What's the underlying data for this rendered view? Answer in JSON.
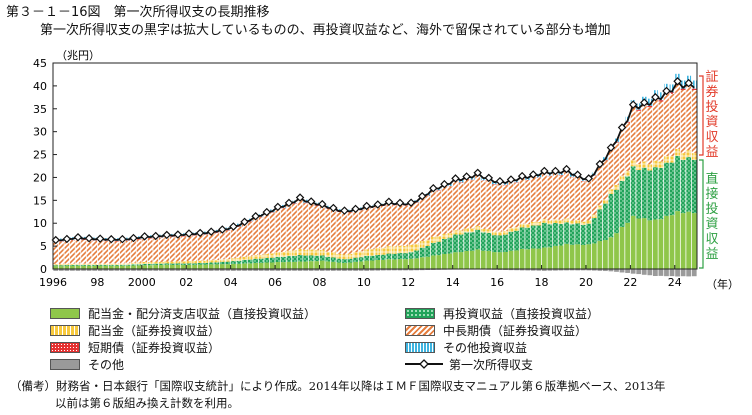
{
  "figure_title": "第３－１－16図　第一次所得収支の長期推移",
  "subtitle": "第一次所得収支の黒字は拡大しているものの、再投資収益など、海外で留保されている部分も増加",
  "side_labels": {
    "portfolio": "証券投資収益",
    "direct": "直接投資収益"
  },
  "note_line1": "（備考）財務省・日本銀行「国際収支統計」により作成。2014年以降はＩＭＦ国際収支マニュアル第６版準拠ベース、2013年",
  "note_line2": "以前は第６版組み換え計数を利用。",
  "colors": {
    "dividends_direct": "#8fc64a",
    "dividends_portfolio": "#f7c93d",
    "short_term": "#e63030",
    "other": "#9a9a9a",
    "reinvested": "#21a35a",
    "long_term": "#e57e3f",
    "other_investment": "#3fb4e0",
    "line": "#111111",
    "portfolio_label": "#e23b2a",
    "direct_label": "#2ea043"
  },
  "chart_data": {
    "type": "bar",
    "stacked": true,
    "frequency": "quarterly",
    "period": "1996Q1-2024Q4",
    "ylabel": "（兆円）",
    "xlabel_unit": "（年）",
    "ylim": [
      0,
      45
    ],
    "yticks": [
      0,
      5,
      10,
      15,
      20,
      25,
      30,
      35,
      40,
      45
    ],
    "xtick_labels": [
      {
        "year": 1996,
        "label": "1996"
      },
      {
        "year": 1998,
        "label": "98"
      },
      {
        "year": 2000,
        "label": "2000"
      },
      {
        "year": 2002,
        "label": "02"
      },
      {
        "year": 2004,
        "label": "04"
      },
      {
        "year": 2006,
        "label": "06"
      },
      {
        "year": 2008,
        "label": "08"
      },
      {
        "year": 2010,
        "label": "10"
      },
      {
        "year": 2012,
        "label": "12"
      },
      {
        "year": 2014,
        "label": "14"
      },
      {
        "year": 2016,
        "label": "16"
      },
      {
        "year": 2018,
        "label": "18"
      },
      {
        "year": 2020,
        "label": "20"
      },
      {
        "year": 2022,
        "label": "22"
      },
      {
        "year": 2024,
        "label": "24"
      }
    ],
    "legend": [
      {
        "key": "dividends_direct",
        "label": "配当金・配分済支店収益（直接投資収益）"
      },
      {
        "key": "reinvested",
        "label": "再投資収益（直接投資収益）"
      },
      {
        "key": "dividends_portfolio",
        "label": "配当金（証券投資収益）"
      },
      {
        "key": "long_term",
        "label": "中長期債（証券投資収益）"
      },
      {
        "key": "short_term",
        "label": "短期債（証券投資収益）"
      },
      {
        "key": "other_investment",
        "label": "その他投資収益"
      },
      {
        "key": "other",
        "label": "その他"
      },
      {
        "key": "total",
        "label": "第一次所得収支"
      }
    ],
    "annual_values": {
      "year": [
        1996,
        1997,
        1998,
        1999,
        2000,
        2001,
        2002,
        2003,
        2004,
        2005,
        2006,
        2007,
        2008,
        2009,
        2010,
        2011,
        2012,
        2013,
        2014,
        2015,
        2016,
        2017,
        2018,
        2019,
        2020,
        2021,
        2022,
        2023,
        2024
      ],
      "total": [
        6.2,
        6.8,
        6.5,
        6.4,
        7.0,
        7.3,
        7.6,
        8.0,
        9.1,
        11.3,
        13.3,
        15.3,
        13.9,
        12.5,
        13.5,
        14.4,
        14.2,
        17.3,
        19.4,
        20.6,
        18.8,
        19.9,
        21.0,
        21.4,
        19.4,
        26.0,
        35.2,
        36.8,
        40.2
      ],
      "dividends_direct": [
        0.6,
        0.7,
        0.7,
        0.7,
        0.8,
        0.9,
        0.9,
        1.0,
        1.1,
        1.3,
        1.5,
        1.6,
        1.8,
        1.3,
        1.8,
        2.1,
        2.2,
        2.9,
        3.6,
        4.2,
        3.6,
        4.3,
        4.6,
        5.4,
        5.3,
        6.8,
        11.4,
        10.6,
        12.4
      ],
      "reinvested": [
        0.2,
        0.2,
        0.2,
        0.2,
        0.3,
        0.3,
        0.3,
        0.4,
        0.6,
        0.9,
        1.1,
        1.4,
        1.1,
        0.8,
        1.0,
        1.2,
        1.4,
        2.7,
        3.8,
        4.2,
        3.6,
        4.6,
        5.3,
        4.6,
        4.4,
        9.3,
        10.6,
        11.2,
        11.8
      ],
      "dividends_portfolio": [
        0.3,
        0.3,
        0.3,
        0.3,
        0.4,
        0.4,
        0.5,
        0.5,
        0.6,
        0.8,
        1.0,
        1.3,
        1.2,
        1.0,
        1.4,
        1.6,
        1.6,
        1.3,
        0.9,
        0.8,
        0.8,
        0.8,
        0.8,
        0.8,
        0.7,
        1.0,
        1.3,
        1.4,
        1.5
      ],
      "long_term": [
        4.8,
        5.3,
        5.0,
        4.9,
        5.2,
        5.4,
        5.6,
        5.8,
        6.5,
        8.0,
        9.4,
        10.6,
        9.6,
        9.2,
        9.1,
        9.3,
        8.8,
        10.0,
        10.5,
        10.8,
        10.3,
        9.7,
        9.8,
        10.0,
        8.6,
        8.7,
        11.4,
        13.1,
        14.0
      ],
      "short_term": [
        0.1,
        0.1,
        0.1,
        0.1,
        0.1,
        0.1,
        0.1,
        0.1,
        0.1,
        0.1,
        0.1,
        0.1,
        0.1,
        0.1,
        0.1,
        0.1,
        0.1,
        0.1,
        0.1,
        0.1,
        0.1,
        0.1,
        0.1,
        0.1,
        0.1,
        0.1,
        0.2,
        0.3,
        0.3
      ],
      "other_investment": [
        0.6,
        0.6,
        0.6,
        0.6,
        0.6,
        0.6,
        0.6,
        0.6,
        0.6,
        0.6,
        0.6,
        0.7,
        0.6,
        0.5,
        0.5,
        0.4,
        0.4,
        0.5,
        0.6,
        0.6,
        0.6,
        0.7,
        0.8,
        0.8,
        0.6,
        0.6,
        1.3,
        1.7,
        1.8
      ],
      "other": [
        -0.4,
        -0.4,
        -0.4,
        -0.4,
        -0.4,
        -0.4,
        -0.4,
        -0.4,
        -0.4,
        -0.4,
        -0.4,
        -0.4,
        -0.4,
        -0.4,
        -0.4,
        -0.3,
        -0.3,
        -0.2,
        -0.1,
        -0.1,
        -0.2,
        -0.3,
        -0.4,
        -0.3,
        -0.3,
        -0.5,
        -1.0,
        -1.5,
        -1.6
      ]
    }
  }
}
